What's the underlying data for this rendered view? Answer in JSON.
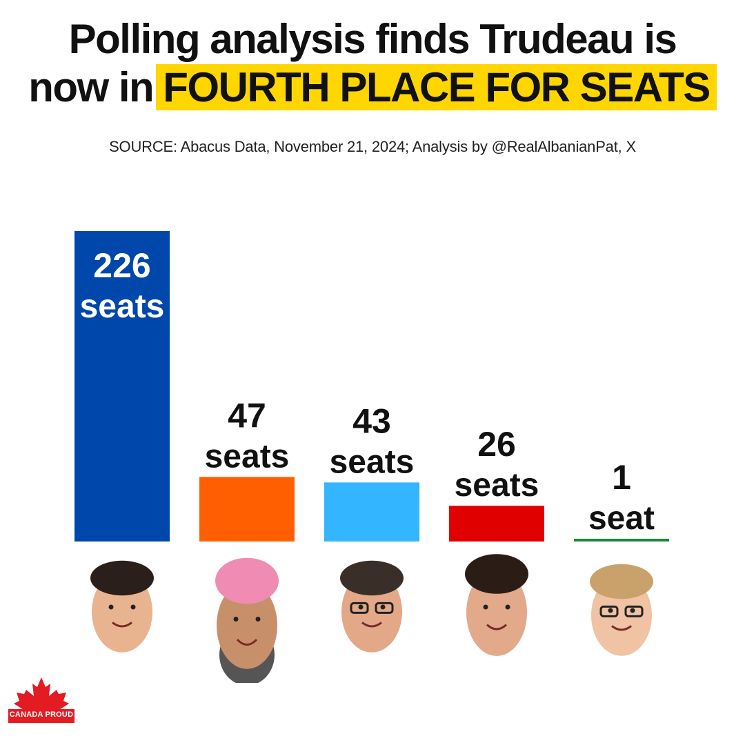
{
  "header": {
    "title_line1": "Polling analysis finds Trudeau is",
    "title_line2_prefix": "now in",
    "title_line2_highlight": "FOURTH PLACE FOR SEATS",
    "highlight_color": "#FFD600",
    "source": "SOURCE: Abacus Data, November 21, 2024; Analysis by @RealAlbanianPat, X"
  },
  "chart_data": {
    "type": "bar",
    "values": [
      226,
      47,
      43,
      26,
      1
    ],
    "value_labels": [
      "226",
      "47",
      "43",
      "26",
      "1"
    ],
    "unit_labels": [
      "seats",
      "seats",
      "seats",
      "seats",
      "seat"
    ],
    "colors": [
      "#0047AB",
      "#FF5F00",
      "#33B5FF",
      "#E00000",
      "#1A8A3A"
    ],
    "ylim": [
      0,
      226
    ],
    "grid": false,
    "title": "Polling analysis finds Trudeau is now in FOURTH PLACE FOR SEATS"
  },
  "faces": [
    {
      "icon": "smiling-man-portrait"
    },
    {
      "icon": "man-pink-turban-portrait"
    },
    {
      "icon": "man-glasses-portrait"
    },
    {
      "icon": "surprised-man-portrait"
    },
    {
      "icon": "woman-glasses-portrait"
    }
  ],
  "logo": {
    "text": "CANADA PROUD",
    "icon": "maple-leaf-icon",
    "color": "#E31B23"
  }
}
